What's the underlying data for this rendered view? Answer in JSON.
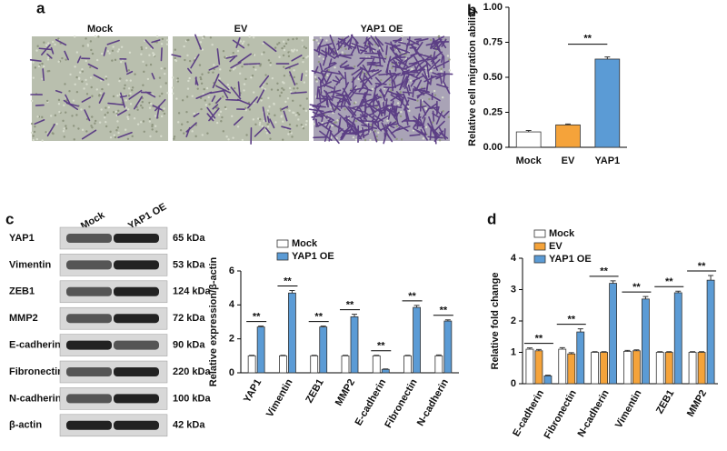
{
  "panel_labels": [
    "a",
    "b",
    "c",
    "d"
  ],
  "micrographs": [
    "Mock",
    "EV",
    "YAP1 OE"
  ],
  "blot": {
    "lanes": [
      "Mock",
      "YAP1 OE"
    ],
    "rows": [
      {
        "protein": "YAP1",
        "size": "65 kDa"
      },
      {
        "protein": "Vimentin",
        "size": "53 kDa"
      },
      {
        "protein": "ZEB1",
        "size": "124 kDa"
      },
      {
        "protein": "MMP2",
        "size": "72 kDa"
      },
      {
        "protein": "E-cadherin",
        "size": "90 kDa"
      },
      {
        "protein": "Fibronectin",
        "size": "220 kDa"
      },
      {
        "protein": "N-cadherin",
        "size": "100 kDa"
      },
      {
        "protein": "β-actin",
        "size": "42 kDa"
      }
    ]
  },
  "chart_data": [
    {
      "type": "bar",
      "categories": [
        "Mock",
        "EV",
        "YAP1"
      ],
      "values": [
        0.11,
        0.16,
        0.63
      ],
      "errors": [
        0.01,
        0.006,
        0.015
      ],
      "colors": [
        "#ffffff",
        "#f5a33a",
        "#5b9bd5"
      ],
      "ylabel": "Relative cell migration ability",
      "ylim": [
        0,
        1
      ],
      "yticks": [
        {
          "value": 0,
          "label": "0.00"
        },
        {
          "value": 0.25,
          "label": "0.25"
        },
        {
          "value": 0.5,
          "label": "0.50"
        },
        {
          "value": 0.75,
          "label": "0.75"
        },
        {
          "value": 1,
          "label": "1.00"
        }
      ],
      "annotation": "**"
    },
    {
      "type": "bar",
      "categories": [
        "YAP1",
        "Vimentin",
        "ZEB1",
        "MMP2",
        "E-cadherin",
        "Fibronectin",
        "N-cadherin"
      ],
      "series": [
        {
          "name": "Mock",
          "color": "#ffffff",
          "values": [
            1,
            1,
            1,
            1,
            1,
            1,
            1
          ],
          "errors": [
            0.03,
            0.03,
            0.03,
            0.03,
            0.03,
            0.03,
            0.05
          ]
        },
        {
          "name": "YAP1 OE",
          "color": "#5b9bd5",
          "values": [
            2.7,
            4.7,
            2.7,
            3.3,
            0.2,
            3.85,
            3.05
          ],
          "errors": [
            0.05,
            0.15,
            0.05,
            0.15,
            0.03,
            0.12,
            0.07
          ]
        }
      ],
      "ylabel": "Relative expression/β-actin",
      "ylim": [
        0,
        6
      ],
      "yticks": [
        0,
        2,
        4,
        6
      ],
      "annotations": [
        "**",
        "**",
        "**",
        "**",
        "**",
        "**",
        "**"
      ],
      "legend": "upper left"
    },
    {
      "type": "bar",
      "categories": [
        "E-cadherin",
        "Fibronectin",
        "N-cadherin",
        "Vimentin",
        "ZEB1",
        "MMP2"
      ],
      "series": [
        {
          "name": "Mock",
          "color": "#ffffff",
          "values": [
            1.1,
            1.1,
            1.0,
            1.03,
            1.0,
            1.0
          ],
          "errors": [
            0.04,
            0.05,
            0.02,
            0.03,
            0.02,
            0.02
          ]
        },
        {
          "name": "EV",
          "color": "#f5a33a",
          "values": [
            1.05,
            0.95,
            1.0,
            1.05,
            1.0,
            1.0
          ],
          "errors": [
            0.04,
            0.04,
            0.02,
            0.03,
            0.02,
            0.02
          ]
        },
        {
          "name": "YAP1 OE",
          "color": "#5b9bd5",
          "values": [
            0.25,
            1.65,
            3.2,
            2.7,
            2.9,
            3.3
          ],
          "errors": [
            0.02,
            0.1,
            0.08,
            0.08,
            0.05,
            0.15
          ]
        }
      ],
      "ylabel": "Relative fold change",
      "ylim": [
        0,
        4
      ],
      "yticks": [
        0,
        1,
        2,
        3,
        4
      ],
      "annotations": [
        "**",
        "**",
        "**",
        "**",
        "**",
        "**"
      ],
      "legend": "upper left"
    }
  ]
}
